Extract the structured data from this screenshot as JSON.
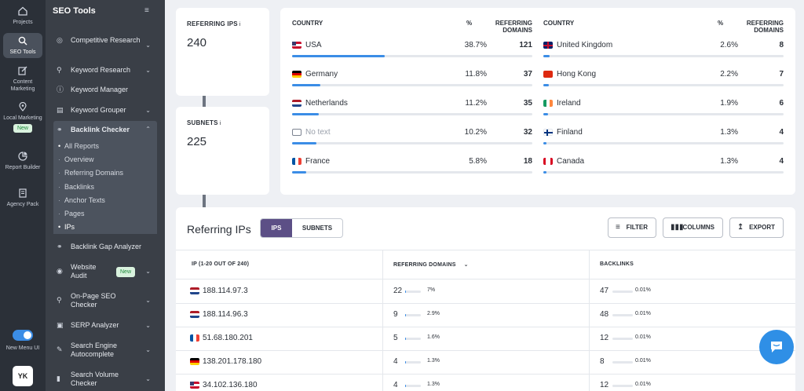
{
  "rail": {
    "items": [
      {
        "label": "Projects"
      },
      {
        "label": "SEO Tools"
      },
      {
        "label": "Content Marketing"
      },
      {
        "label": "Local Marketing"
      },
      {
        "label": "Report Builder"
      },
      {
        "label": "Agency Pack"
      }
    ],
    "new_badge": "New",
    "toggle_label": "New Menu UI",
    "avatar_initials": "YK"
  },
  "menu": {
    "title": "SEO Tools",
    "items": [
      {
        "label": "Competitive Research"
      },
      {
        "label": "Keyword Research"
      },
      {
        "label": "Keyword Manager"
      },
      {
        "label": "Keyword Grouper"
      },
      {
        "label": "Backlink Checker"
      },
      {
        "label": "Backlink Gap Analyzer"
      },
      {
        "label": "Website Audit"
      },
      {
        "label": "On-Page SEO Checker"
      },
      {
        "label": "SERP Analyzer"
      },
      {
        "label": "Search Engine Autocomplete"
      },
      {
        "label": "Search Volume Checker"
      }
    ],
    "sub_items": [
      {
        "label": "All Reports"
      },
      {
        "label": "Overview"
      },
      {
        "label": "Referring Domains"
      },
      {
        "label": "Backlinks"
      },
      {
        "label": "Anchor Texts"
      },
      {
        "label": "Pages"
      },
      {
        "label": "IPs"
      }
    ],
    "new_badge": "New"
  },
  "stats": {
    "referring_ips": {
      "label": "REFERRING IPS",
      "value": "240"
    },
    "subnets": {
      "label": "SUBNETS",
      "value": "225"
    }
  },
  "countries": {
    "headers": {
      "country": "COUNTRY",
      "pct": "%",
      "domains": "REFERRING DOMAINS"
    },
    "left": [
      {
        "name": "USA",
        "pct": "38.7%",
        "domains": "121",
        "fraction": 0.387
      },
      {
        "name": "Germany",
        "pct": "11.8%",
        "domains": "37",
        "fraction": 0.118
      },
      {
        "name": "Netherlands",
        "pct": "11.2%",
        "domains": "35",
        "fraction": 0.112
      },
      {
        "name": "No text",
        "pct": "10.2%",
        "domains": "32",
        "fraction": 0.102
      },
      {
        "name": "France",
        "pct": "5.8%",
        "domains": "18",
        "fraction": 0.058
      }
    ],
    "right": [
      {
        "name": "United Kingdom",
        "pct": "2.6%",
        "domains": "8",
        "fraction": 0.026
      },
      {
        "name": "Hong Kong",
        "pct": "2.2%",
        "domains": "7",
        "fraction": 0.022
      },
      {
        "name": "Ireland",
        "pct": "1.9%",
        "domains": "6",
        "fraction": 0.019
      },
      {
        "name": "Finland",
        "pct": "1.3%",
        "domains": "4",
        "fraction": 0.013
      },
      {
        "name": "Canada",
        "pct": "1.3%",
        "domains": "4",
        "fraction": 0.013
      }
    ]
  },
  "table": {
    "title": "Referring IPs",
    "tabs": [
      "IPS",
      "SUBNETS"
    ],
    "buttons": {
      "filter": "FILTER",
      "columns": "COLUMNS",
      "export": "EXPORT"
    },
    "headers": {
      "ip": "IP (1-20 OUT OF 240)",
      "domains": "REFERRING DOMAINS",
      "backlinks": "BACKLINKS"
    },
    "rows": [
      {
        "ip": "188.114.97.3",
        "domains": "22",
        "domains_pct": "7%",
        "domains_fraction": 0.07,
        "backlinks": "47",
        "backlinks_pct": "0.01%"
      },
      {
        "ip": "188.114.96.3",
        "domains": "9",
        "domains_pct": "2.9%",
        "domains_fraction": 0.029,
        "backlinks": "48",
        "backlinks_pct": "0.01%"
      },
      {
        "ip": "51.68.180.201",
        "domains": "5",
        "domains_pct": "1.6%",
        "domains_fraction": 0.016,
        "backlinks": "12",
        "backlinks_pct": "0.01%"
      },
      {
        "ip": "138.201.178.180",
        "domains": "4",
        "domains_pct": "1.3%",
        "domains_fraction": 0.013,
        "backlinks": "8",
        "backlinks_pct": "0.01%"
      },
      {
        "ip": "34.102.136.180",
        "domains": "4",
        "domains_pct": "1.3%",
        "domains_fraction": 0.013,
        "backlinks": "12",
        "backlinks_pct": "0.01%"
      }
    ]
  },
  "colors": {
    "accent": "#3b8de6",
    "tab_active": "#5c4f86",
    "sidebar": "#3a3f47",
    "rail": "#2b3038"
  }
}
